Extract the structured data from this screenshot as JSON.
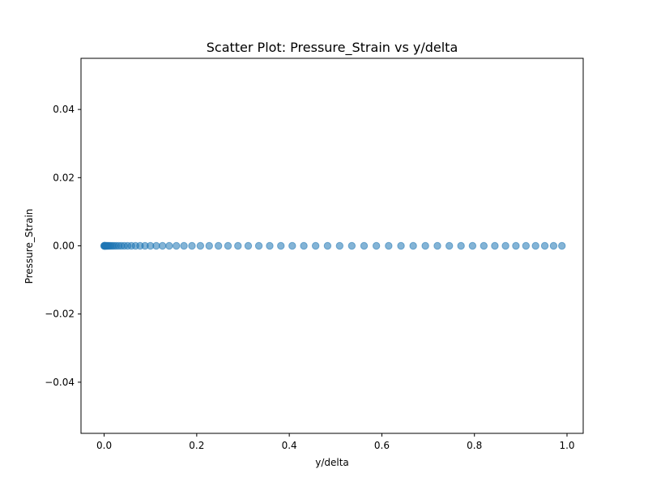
{
  "chart_data": {
    "type": "scatter",
    "title": "Scatter Plot: Pressure_Strain vs y/delta",
    "xlabel": "y/delta",
    "ylabel": "Pressure_Strain",
    "xlim": [
      -0.05,
      1.035
    ],
    "ylim": [
      -0.055,
      0.055
    ],
    "x_ticks": [
      0.0,
      0.2,
      0.4,
      0.6,
      0.8,
      1.0
    ],
    "x_tick_labels": [
      "0.0",
      "0.2",
      "0.4",
      "0.6",
      "0.8",
      "1.0"
    ],
    "y_ticks": [
      -0.04,
      -0.02,
      0.0,
      0.02,
      0.04
    ],
    "y_tick_labels": [
      "−0.04",
      "−0.02",
      "0.00",
      "0.02",
      "0.04"
    ],
    "grid": false,
    "legend": "none",
    "marker_color": "#1f77b4",
    "marker_alpha": 0.55,
    "series": [
      {
        "x": [
          0.0,
          0.0005,
          0.001,
          0.0017,
          0.0026,
          0.0037,
          0.0051,
          0.0068,
          0.0089,
          0.0113,
          0.0142,
          0.0176,
          0.0215,
          0.026,
          0.0312,
          0.037,
          0.0435,
          0.0508,
          0.0589,
          0.0678,
          0.0776,
          0.0883,
          0.1,
          0.1126,
          0.1261,
          0.1406,
          0.156,
          0.1724,
          0.1897,
          0.2079,
          0.227,
          0.2469,
          0.2676,
          0.2891,
          0.3113,
          0.3342,
          0.3577,
          0.3818,
          0.4064,
          0.4314,
          0.4569,
          0.4827,
          0.5088,
          0.5351,
          0.5616,
          0.5881,
          0.6147,
          0.6413,
          0.6677,
          0.694,
          0.72,
          0.7457,
          0.771,
          0.7959,
          0.8203,
          0.8441,
          0.8672,
          0.8896,
          0.9113,
          0.9321,
          0.952,
          0.971,
          0.989
        ],
        "y": [
          0,
          0,
          0,
          0,
          0,
          0,
          0,
          0,
          0,
          0,
          0,
          0,
          0,
          0,
          0,
          0,
          0,
          0,
          0,
          0,
          0,
          0,
          0,
          0,
          0,
          0,
          0,
          0,
          0,
          0,
          0,
          0,
          0,
          0,
          0,
          0,
          0,
          0,
          0,
          0,
          0,
          0,
          0,
          0,
          0,
          0,
          0,
          0,
          0,
          0,
          0,
          0,
          0,
          0,
          0,
          0,
          0,
          0,
          0,
          0,
          0,
          0,
          0
        ]
      }
    ]
  }
}
